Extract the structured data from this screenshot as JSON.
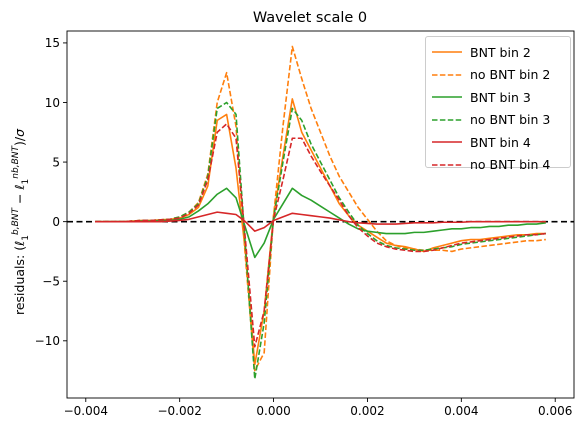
{
  "chart_data": {
    "type": "line",
    "title": "Wavelet scale 0",
    "ylabel": "residuals: (ℓ₁^{b,BNT} − ℓ₁^{nb,BNT})/σ",
    "xlabel": "",
    "xlim": [
      -0.0044,
      0.0064
    ],
    "ylim": [
      -14.8,
      16.0
    ],
    "xticks": [
      -0.004,
      -0.002,
      0.0,
      0.002,
      0.004,
      0.006
    ],
    "xtick_labels": [
      "−0.004",
      "−0.002",
      "0.000",
      "0.002",
      "0.004",
      "0.006"
    ],
    "yticks": [
      -10,
      -5,
      0,
      5,
      10,
      15
    ],
    "ytick_labels": [
      "−10",
      "−5",
      "0",
      "5",
      "10",
      "15"
    ],
    "reference_line": {
      "y": 0,
      "style": "dashed",
      "color": "#000000"
    },
    "grid": false,
    "legend_position": "top-right",
    "series": [
      {
        "name": "BNT bin 2",
        "color": "#ff7f0e",
        "dash": "solid",
        "x": [
          -0.0038,
          -0.0036,
          -0.0034,
          -0.0032,
          -0.003,
          -0.0028,
          -0.0026,
          -0.0024,
          -0.0022,
          -0.002,
          -0.0018,
          -0.0016,
          -0.0014,
          -0.0012,
          -0.001,
          -0.0008,
          -0.0006,
          -0.0004,
          -0.0002,
          0.0,
          0.0002,
          0.0004,
          0.0006,
          0.0008,
          0.001,
          0.0012,
          0.0014,
          0.0016,
          0.0018,
          0.002,
          0.0022,
          0.0024,
          0.0026,
          0.0028,
          0.003,
          0.0032,
          0.0034,
          0.0036,
          0.0038,
          0.004,
          0.0042,
          0.0044,
          0.0046,
          0.0048,
          0.005,
          0.0052,
          0.0054,
          0.0056,
          0.0058
        ],
        "y": [
          0.0,
          0.0,
          0.0,
          0.0,
          0.05,
          0.1,
          0.1,
          0.15,
          0.2,
          0.3,
          0.6,
          1.2,
          3.0,
          8.5,
          9.0,
          4.5,
          -2.5,
          -12.0,
          -7.5,
          0.5,
          5.5,
          10.3,
          7.5,
          6.0,
          4.5,
          3.0,
          1.5,
          0.5,
          -0.3,
          -0.8,
          -1.3,
          -1.8,
          -2.0,
          -2.1,
          -2.3,
          -2.5,
          -2.2,
          -2.0,
          -1.8,
          -1.6,
          -1.5,
          -1.5,
          -1.4,
          -1.3,
          -1.2,
          -1.1,
          -1.1,
          -1.0,
          -1.0
        ]
      },
      {
        "name": "no BNT bin 2",
        "color": "#ff7f0e",
        "dash": "dashed",
        "x": [
          -0.0038,
          -0.0036,
          -0.0034,
          -0.0032,
          -0.003,
          -0.0028,
          -0.0026,
          -0.0024,
          -0.0022,
          -0.002,
          -0.0018,
          -0.0016,
          -0.0014,
          -0.0012,
          -0.001,
          -0.0008,
          -0.0006,
          -0.0004,
          -0.0002,
          0.0,
          0.0002,
          0.0004,
          0.0006,
          0.0008,
          0.001,
          0.0012,
          0.0014,
          0.0016,
          0.0018,
          0.002,
          0.0022,
          0.0024,
          0.0026,
          0.0028,
          0.003,
          0.0032,
          0.0034,
          0.0036,
          0.0038,
          0.004,
          0.0042,
          0.0044,
          0.0046,
          0.0048,
          0.005,
          0.0052,
          0.0054,
          0.0056,
          0.0058
        ],
        "y": [
          0.0,
          0.0,
          0.0,
          0.0,
          0.05,
          0.1,
          0.1,
          0.15,
          0.2,
          0.4,
          0.8,
          1.6,
          4.0,
          10.0,
          12.5,
          8.0,
          -3.0,
          -12.5,
          -11.0,
          0.5,
          8.0,
          14.7,
          12.0,
          9.5,
          7.5,
          5.5,
          3.8,
          2.5,
          1.2,
          0.2,
          -0.8,
          -1.6,
          -2.0,
          -2.2,
          -2.3,
          -2.4,
          -2.4,
          -2.4,
          -2.5,
          -2.3,
          -2.2,
          -2.1,
          -2.0,
          -1.9,
          -1.8,
          -1.7,
          -1.6,
          -1.6,
          -1.5
        ]
      },
      {
        "name": "BNT bin 3",
        "color": "#2ca02c",
        "dash": "solid",
        "x": [
          -0.0038,
          -0.0036,
          -0.0034,
          -0.0032,
          -0.003,
          -0.0028,
          -0.0026,
          -0.0024,
          -0.0022,
          -0.002,
          -0.0018,
          -0.0016,
          -0.0014,
          -0.0012,
          -0.001,
          -0.0008,
          -0.0006,
          -0.0004,
          -0.0002,
          0.0,
          0.0002,
          0.0004,
          0.0006,
          0.0008,
          0.001,
          0.0012,
          0.0014,
          0.0016,
          0.0018,
          0.002,
          0.0022,
          0.0024,
          0.0026,
          0.0028,
          0.003,
          0.0032,
          0.0034,
          0.0036,
          0.0038,
          0.004,
          0.0042,
          0.0044,
          0.0046,
          0.0048,
          0.005,
          0.0052,
          0.0054,
          0.0056,
          0.0058
        ],
        "y": [
          0.0,
          0.0,
          0.0,
          0.0,
          0.0,
          0.05,
          0.05,
          0.1,
          0.1,
          0.2,
          0.4,
          0.9,
          1.5,
          2.3,
          2.8,
          2.0,
          -0.5,
          -3.0,
          -1.8,
          0.2,
          1.5,
          2.8,
          2.2,
          1.8,
          1.3,
          0.8,
          0.3,
          -0.2,
          -0.6,
          -0.8,
          -0.9,
          -1.0,
          -1.0,
          -1.0,
          -0.9,
          -0.9,
          -0.8,
          -0.7,
          -0.6,
          -0.6,
          -0.5,
          -0.5,
          -0.4,
          -0.4,
          -0.3,
          -0.3,
          -0.2,
          -0.2,
          -0.1
        ]
      },
      {
        "name": "no BNT bin 3",
        "color": "#2ca02c",
        "dash": "dashed",
        "x": [
          -0.0038,
          -0.0036,
          -0.0034,
          -0.0032,
          -0.003,
          -0.0028,
          -0.0026,
          -0.0024,
          -0.0022,
          -0.002,
          -0.0018,
          -0.0016,
          -0.0014,
          -0.0012,
          -0.001,
          -0.0008,
          -0.0006,
          -0.0004,
          -0.0002,
          0.0,
          0.0002,
          0.0004,
          0.0006,
          0.0008,
          0.001,
          0.0012,
          0.0014,
          0.0016,
          0.0018,
          0.002,
          0.0022,
          0.0024,
          0.0026,
          0.0028,
          0.003,
          0.0032,
          0.0034,
          0.0036,
          0.0038,
          0.004,
          0.0042,
          0.0044,
          0.0046,
          0.0048,
          0.005,
          0.0052,
          0.0054,
          0.0056,
          0.0058
        ],
        "y": [
          0.0,
          0.0,
          0.0,
          0.0,
          0.05,
          0.1,
          0.1,
          0.15,
          0.2,
          0.4,
          0.8,
          1.5,
          3.8,
          9.5,
          10.0,
          9.0,
          -2.0,
          -13.2,
          -8.5,
          0.3,
          5.0,
          9.5,
          8.5,
          6.5,
          5.0,
          3.5,
          2.0,
          0.8,
          -0.3,
          -1.0,
          -1.6,
          -2.0,
          -2.2,
          -2.3,
          -2.4,
          -2.4,
          -2.3,
          -2.2,
          -2.1,
          -1.9,
          -1.8,
          -1.7,
          -1.6,
          -1.5,
          -1.4,
          -1.3,
          -1.2,
          -1.1,
          -1.0
        ]
      },
      {
        "name": "BNT bin 4",
        "color": "#d62728",
        "dash": "solid",
        "x": [
          -0.0038,
          -0.0036,
          -0.0034,
          -0.0032,
          -0.003,
          -0.0028,
          -0.0026,
          -0.0024,
          -0.0022,
          -0.002,
          -0.0018,
          -0.0016,
          -0.0014,
          -0.0012,
          -0.001,
          -0.0008,
          -0.0006,
          -0.0004,
          -0.0002,
          0.0,
          0.0002,
          0.0004,
          0.0006,
          0.0008,
          0.001,
          0.0012,
          0.0014,
          0.0016,
          0.0018,
          0.002,
          0.0022,
          0.0024,
          0.0026,
          0.0028,
          0.003,
          0.0032,
          0.0034,
          0.0036,
          0.0038,
          0.004,
          0.0042,
          0.0044,
          0.0046,
          0.0048,
          0.005,
          0.0052,
          0.0054,
          0.0056,
          0.0058
        ],
        "y": [
          0.0,
          0.0,
          0.0,
          0.0,
          0.0,
          0.0,
          0.0,
          0.0,
          0.05,
          0.1,
          0.2,
          0.4,
          0.6,
          0.8,
          0.7,
          0.6,
          0.0,
          -0.8,
          -0.5,
          0.1,
          0.4,
          0.7,
          0.6,
          0.5,
          0.4,
          0.3,
          0.15,
          0.0,
          -0.1,
          -0.15,
          -0.2,
          -0.2,
          -0.2,
          -0.15,
          -0.1,
          -0.1,
          -0.1,
          -0.05,
          -0.05,
          -0.05,
          0.0,
          0.0,
          0.0,
          0.0,
          0.0,
          0.0,
          0.0,
          0.0,
          0.0
        ]
      },
      {
        "name": "no BNT bin 4",
        "color": "#d62728",
        "dash": "dashed",
        "x": [
          -0.0038,
          -0.0036,
          -0.0034,
          -0.0032,
          -0.003,
          -0.0028,
          -0.0026,
          -0.0024,
          -0.0022,
          -0.002,
          -0.0018,
          -0.0016,
          -0.0014,
          -0.0012,
          -0.001,
          -0.0008,
          -0.0006,
          -0.0004,
          -0.0002,
          0.0,
          0.0002,
          0.0004,
          0.0006,
          0.0008,
          0.001,
          0.0012,
          0.0014,
          0.0016,
          0.0018,
          0.002,
          0.0022,
          0.0024,
          0.0026,
          0.0028,
          0.003,
          0.0032,
          0.0034,
          0.0036,
          0.0038,
          0.004,
          0.0042,
          0.0044,
          0.0046,
          0.0048,
          0.005,
          0.0052,
          0.0054,
          0.0056,
          0.0058
        ],
        "y": [
          0.0,
          0.0,
          0.0,
          0.0,
          0.05,
          0.1,
          0.1,
          0.15,
          0.2,
          0.3,
          0.7,
          1.4,
          3.5,
          7.5,
          8.2,
          7.0,
          -1.5,
          -10.5,
          -7.5,
          0.2,
          3.5,
          7.0,
          7.0,
          5.5,
          4.2,
          3.0,
          1.8,
          0.5,
          -0.5,
          -1.2,
          -1.8,
          -2.1,
          -2.3,
          -2.4,
          -2.5,
          -2.5,
          -2.4,
          -2.2,
          -2.0,
          -1.8,
          -1.7,
          -1.6,
          -1.5,
          -1.4,
          -1.3,
          -1.2,
          -1.1,
          -1.1,
          -1.0
        ]
      }
    ]
  }
}
